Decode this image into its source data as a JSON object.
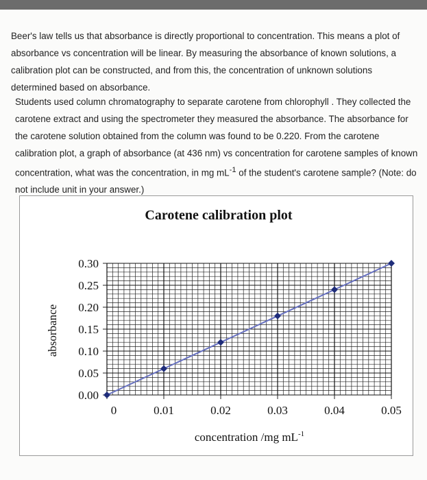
{
  "paragraphs": [
    "Beer's law tells us that absorbance is directly proportional to concentration. This means a plot of absorbance vs concentration will be linear. By measuring the absorbance of known solutions, a calibration plot can be constructed, and from this, the concentration of unknown solutions determined based on absorbance.",
    {
      "before": "Students used column chromatography to separate carotene from chlorophyll . They collected the carotene extract and using the spectrometer they measured the absorbance. The absorbance for the carotene solution obtained from the column was found to be 0.220.  From the carotene calibration plot, a graph of absorbance (at 436 nm) vs concentration for carotene samples of known concentration, what was the concentration, in mg mL",
      "sup": "-1",
      "after": " of the student's carotene sample? (Note: do not include unit in your answer.)"
    }
  ],
  "chart_data": {
    "type": "line",
    "title": "Carotene calibration plot",
    "ylabel": "absorbance",
    "xlabel": {
      "text": "concentration /mg mL",
      "sup": "-1"
    },
    "x": [
      0,
      0.01,
      0.02,
      0.03,
      0.04,
      0.05
    ],
    "series": [
      {
        "name": "absorbance",
        "color": "#6670c0",
        "marker_color": "#1f2d7a",
        "values": [
          0,
          0.06,
          0.12,
          0.18,
          0.24,
          0.3
        ]
      }
    ],
    "xlim": [
      0,
      0.05
    ],
    "ylim": [
      0,
      0.3
    ],
    "xticks": [
      0,
      0.01,
      0.02,
      0.03,
      0.04,
      0.05
    ],
    "yticks": [
      {
        "value": 0,
        "label": "0.00"
      },
      0.05,
      {
        "value": 0.1,
        "label": "0.10"
      },
      0.15,
      {
        "value": 0.2,
        "label": "0.20"
      },
      0.25,
      {
        "value": 0.3,
        "label": "0.30"
      }
    ],
    "grid": true,
    "minor_grid": {
      "x": 0.001,
      "y": 0.01
    }
  }
}
